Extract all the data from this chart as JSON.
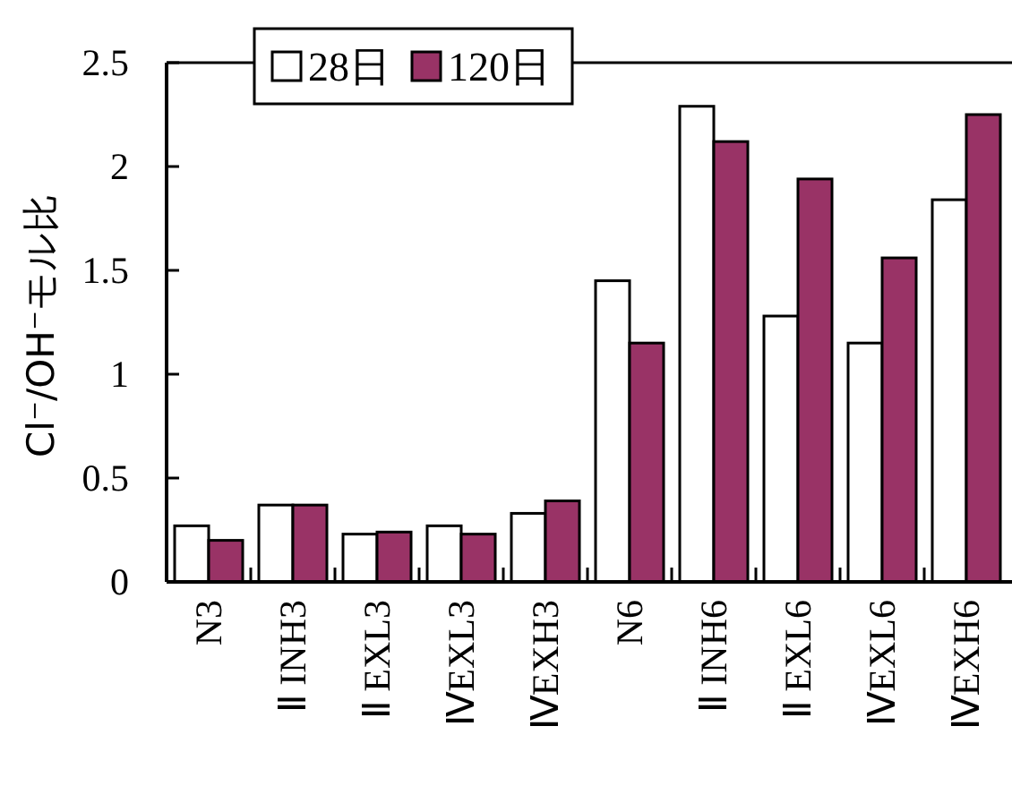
{
  "chart_data": {
    "type": "bar",
    "ylabel": "Cl⁻/OH⁻モル比",
    "categories": [
      "N3",
      "Ⅱ INH3",
      "Ⅱ EXL3",
      "ⅣEXL3",
      "ⅣEXH3",
      "N6",
      "Ⅱ INH6",
      "Ⅱ EXL6",
      "ⅣEXL6",
      "ⅣEXH6"
    ],
    "series": [
      {
        "name": "28日",
        "color": "#ffffff",
        "values": [
          0.27,
          0.37,
          0.23,
          0.27,
          0.33,
          1.45,
          2.29,
          1.28,
          1.15,
          1.84
        ]
      },
      {
        "name": "120日",
        "color": "#993366",
        "values": [
          0.2,
          0.37,
          0.24,
          0.23,
          0.39,
          1.15,
          2.12,
          1.94,
          1.56,
          2.25
        ]
      }
    ],
    "ylim": [
      0,
      2.5
    ],
    "yticks": [
      0,
      0.5,
      1,
      1.5,
      2,
      2.5
    ],
    "grid": false,
    "legend": "top"
  }
}
